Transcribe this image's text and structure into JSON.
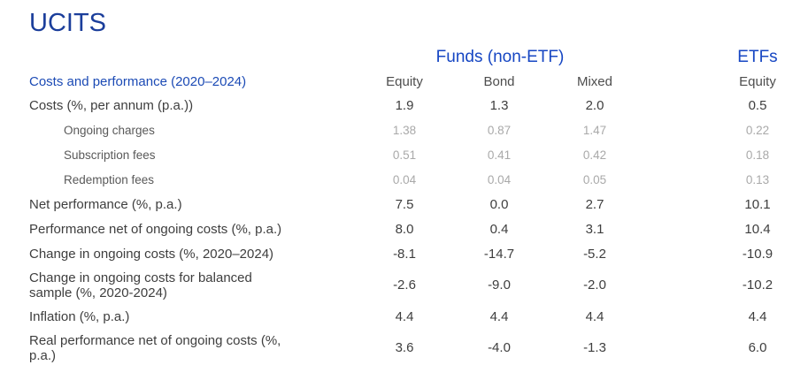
{
  "title": "UCITS",
  "colors": {
    "title_blue": "#1b3e9b",
    "group_header_blue": "#1646c3",
    "row_header_blue": "#1b4ab5",
    "main_text": "#3e3e3e",
    "sub_label_gray": "#595959",
    "sub_value_gray": "#a9a9a9",
    "column_header_gray": "#4d4d4d",
    "background": "#ffffff"
  },
  "table": {
    "group_headers": [
      {
        "label": "Funds (non-ETF)"
      },
      {
        "label": "ETFs"
      }
    ],
    "row_header": "Costs and performance (2020–2024)",
    "column_headers": [
      "Equity",
      "Bond",
      "Mixed",
      "Equity"
    ],
    "rows": [
      {
        "label": "Costs (%, per annum (p.a.))",
        "style": "main",
        "values": [
          "1.9",
          "1.3",
          "2.0",
          "0.5"
        ]
      },
      {
        "label": "Ongoing charges",
        "style": "sub",
        "values": [
          "1.38",
          "0.87",
          "1.47",
          "0.22"
        ]
      },
      {
        "label": "Subscription fees",
        "style": "sub",
        "values": [
          "0.51",
          "0.41",
          "0.42",
          "0.18"
        ]
      },
      {
        "label": "Redemption fees",
        "style": "sub",
        "values": [
          "0.04",
          "0.04",
          "0.05",
          "0.13"
        ]
      },
      {
        "label": "Net performance (%, p.a.)",
        "style": "main",
        "values": [
          "7.5",
          "0.0",
          "2.7",
          "10.1"
        ]
      },
      {
        "label": "Performance net of ongoing costs (%, p.a.)",
        "style": "main",
        "values": [
          "8.0",
          "0.4",
          "3.1",
          "10.4"
        ]
      },
      {
        "label": "Change in ongoing costs (%, 2020–2024)",
        "style": "main",
        "values": [
          "-8.1",
          "-14.7",
          "-5.2",
          "-10.9"
        ]
      },
      {
        "label": "Change in ongoing costs for balanced\nsample (%, 2020-2024)",
        "style": "main",
        "values": [
          "-2.6",
          "-9.0",
          "-2.0",
          "-10.2"
        ]
      },
      {
        "label": "Inflation (%, p.a.)",
        "style": "main",
        "values": [
          "4.4",
          "4.4",
          "4.4",
          "4.4"
        ]
      },
      {
        "label": "Real performance net of ongoing costs (%,\np.a.)",
        "style": "main",
        "values": [
          "3.6",
          "-4.0",
          "-1.3",
          "6.0"
        ]
      }
    ]
  }
}
